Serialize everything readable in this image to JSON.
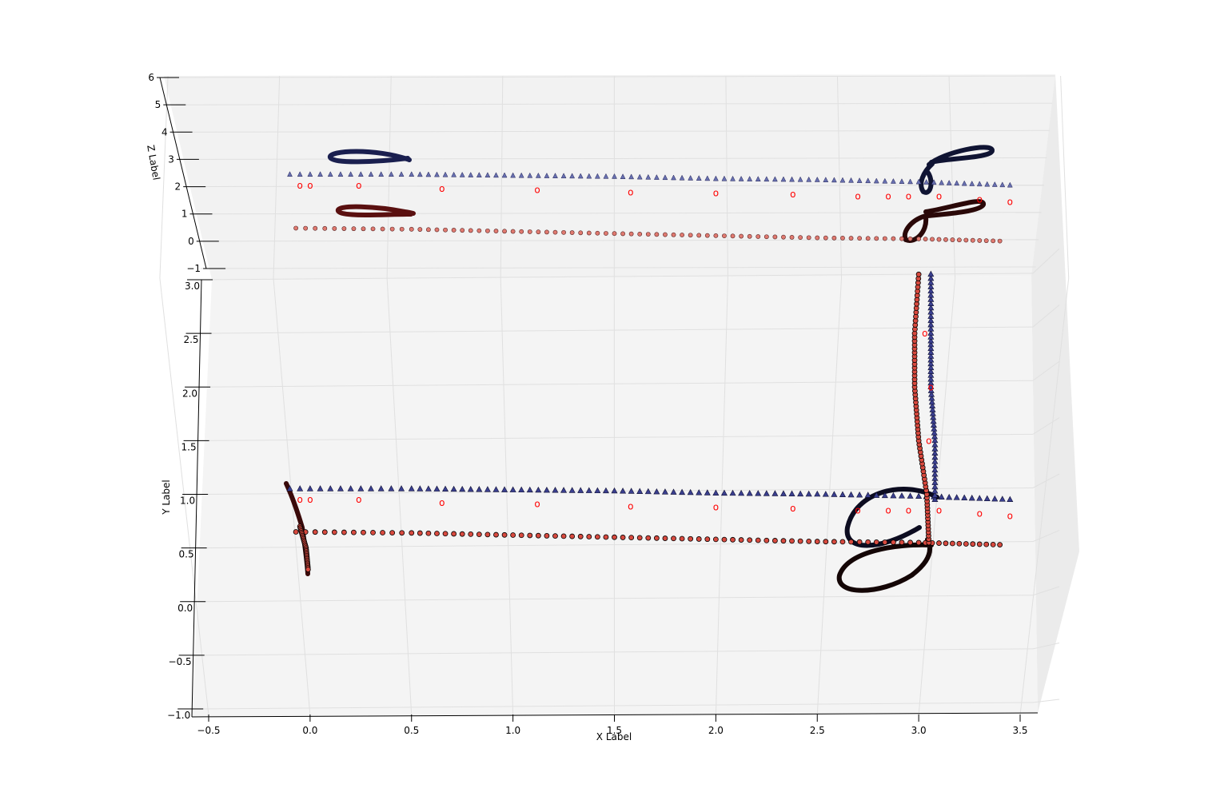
{
  "chart_data": {
    "type": "scatter",
    "projection": "3d",
    "title": "",
    "xlabel": "X Label",
    "ylabel": "Y Label",
    "zlabel": "Z Label",
    "xlim": [
      -0.55,
      3.6
    ],
    "ylim": [
      -1.0,
      3.05
    ],
    "zlim": [
      -1,
      6
    ],
    "grid": true,
    "x_ticks": [
      "−0.5",
      "0.0",
      "0.5",
      "1.0",
      "1.5",
      "2.0",
      "2.5",
      "3.0",
      "3.5"
    ],
    "y_ticks": [
      "−1.0",
      "−0.5",
      "0.0",
      "0.5",
      "1.0",
      "1.5",
      "2.0",
      "2.5",
      "3.0"
    ],
    "z_ticks": [
      "−1",
      "0",
      "1",
      "2",
      "3",
      "4",
      "5",
      "6"
    ],
    "colors": {
      "pane_back": "#f2f2f2",
      "pane_floor": "#f4f4f4",
      "pane_side": "#ebebeb",
      "grid": "#e0e0e0",
      "triangle_fill": "#3a3f8f",
      "circle_fill": "#d84a3f",
      "o_marker": "#ff0000",
      "edge": "#000000"
    },
    "series": [
      {
        "marker": "triangle",
        "color": "#3a3f8f",
        "segments": [
          [
            [
              -0.1,
              1.05
            ],
            [
              0.5,
              1.05
            ],
            [
              1.0,
              1.04
            ],
            [
              1.5,
              1.03
            ],
            [
              2.0,
              1.01
            ],
            [
              2.5,
              1.0
            ],
            [
              3.0,
              0.98
            ],
            [
              3.45,
              0.95
            ]
          ],
          [
            [
              3.08,
              0.95
            ],
            [
              3.08,
              1.5
            ],
            [
              3.06,
              2.0
            ],
            [
              3.06,
              2.5
            ],
            [
              3.06,
              3.05
            ]
          ]
        ]
      },
      {
        "marker": "circle",
        "color": "#d84a3f",
        "segments": [
          [
            [
              -0.07,
              0.65
            ],
            [
              0.5,
              0.64
            ],
            [
              1.0,
              0.62
            ],
            [
              1.5,
              0.6
            ],
            [
              2.0,
              0.58
            ],
            [
              2.5,
              0.56
            ],
            [
              3.0,
              0.55
            ],
            [
              3.4,
              0.53
            ]
          ],
          [
            [
              -0.05,
              0.7
            ],
            [
              -0.02,
              0.5
            ],
            [
              -0.01,
              0.3
            ]
          ],
          [
            [
              3.05,
              0.55
            ],
            [
              3.04,
              1.0
            ],
            [
              3.0,
              1.5
            ],
            [
              2.98,
              2.0
            ],
            [
              2.98,
              2.5
            ],
            [
              3.0,
              3.05
            ]
          ]
        ]
      },
      {
        "marker": "o",
        "color": "#ff0000",
        "points": [
          [
            -0.05,
            0.95
          ],
          [
            0.0,
            0.95
          ],
          [
            0.24,
            0.95
          ],
          [
            0.65,
            0.92
          ],
          [
            1.12,
            0.91
          ],
          [
            1.58,
            0.89
          ],
          [
            2.0,
            0.88
          ],
          [
            2.38,
            0.87
          ],
          [
            2.7,
            0.85
          ],
          [
            2.85,
            0.85
          ],
          [
            2.95,
            0.85
          ],
          [
            3.1,
            0.85
          ],
          [
            3.3,
            0.82
          ],
          [
            3.45,
            0.8
          ],
          [
            3.05,
            1.5
          ],
          [
            3.06,
            2.0
          ],
          [
            3.03,
            2.5
          ]
        ]
      }
    ]
  }
}
